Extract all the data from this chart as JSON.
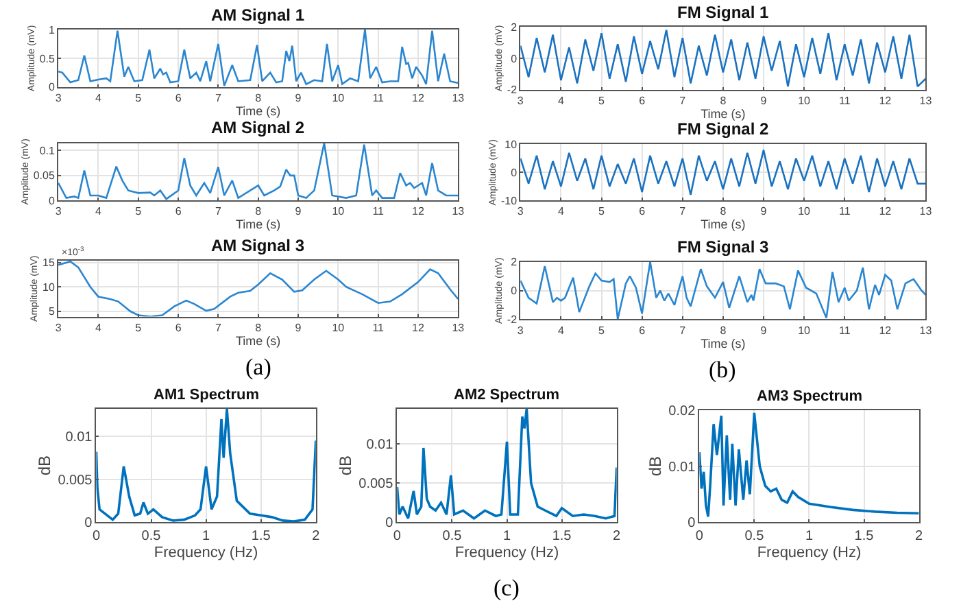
{
  "chart_data": [
    {
      "type": "line",
      "title": "AM Signal 1",
      "xlabel": "Time (s)",
      "ylabel": "Amplitude (mV)",
      "color": "#2a86d0",
      "xlim": [
        3,
        13
      ],
      "ylim": [
        0,
        1
      ],
      "xticks": [
        3,
        4,
        5,
        6,
        7,
        8,
        9,
        10,
        11,
        12,
        13
      ],
      "yticks": [
        0,
        0.5,
        1
      ],
      "grid": true,
      "x": [
        3,
        3.1,
        3.3,
        3.5,
        3.65,
        3.8,
        4.0,
        4.2,
        4.3,
        4.48,
        4.65,
        4.75,
        4.9,
        5.1,
        5.28,
        5.4,
        5.55,
        5.62,
        5.7,
        5.8,
        6.0,
        6.15,
        6.3,
        6.45,
        6.55,
        6.7,
        6.8,
        7.0,
        7.15,
        7.35,
        7.5,
        7.8,
        7.97,
        8.1,
        8.3,
        8.45,
        8.6,
        8.7,
        8.78,
        8.85,
        8.95,
        9.07,
        9.2,
        9.4,
        9.6,
        9.72,
        9.85,
        10.0,
        10.1,
        10.3,
        10.5,
        10.67,
        10.8,
        10.95,
        11.1,
        11.3,
        11.5,
        11.6,
        11.7,
        11.75,
        11.85,
        11.95,
        12.1,
        12.2,
        12.35,
        12.5,
        12.65,
        12.8,
        13
      ],
      "values": [
        0.27,
        0.25,
        0.08,
        0.12,
        0.55,
        0.1,
        0.13,
        0.15,
        0.1,
        0.98,
        0.18,
        0.35,
        0.1,
        0.12,
        0.65,
        0.15,
        0.32,
        0.22,
        0.25,
        0.08,
        0.1,
        0.65,
        0.15,
        0.25,
        0.1,
        0.45,
        0.1,
        0.75,
        0.02,
        0.38,
        0.1,
        0.12,
        0.73,
        0.1,
        0.25,
        0.08,
        0.1,
        0.63,
        0.45,
        0.72,
        0.1,
        0.25,
        0.05,
        0.12,
        0.1,
        0.75,
        0.1,
        0.38,
        0.05,
        0.15,
        0.1,
        1.0,
        0.15,
        0.35,
        0.08,
        0.1,
        0.1,
        0.7,
        0.4,
        0.42,
        0.15,
        0.35,
        0.2,
        0.05,
        0.98,
        0.1,
        0.58,
        0.1,
        0.07
      ]
    },
    {
      "type": "line",
      "title": "FM Signal 1",
      "xlabel": "Time (s)",
      "ylabel": "Amplitude (mV)",
      "color": "#1a72c0",
      "xlim": [
        3,
        13
      ],
      "ylim": [
        -2,
        2
      ],
      "xticks": [
        3,
        4,
        5,
        6,
        7,
        8,
        9,
        10,
        11,
        12,
        13
      ],
      "yticks": [
        -2,
        0,
        2
      ],
      "grid": true,
      "x": [
        3,
        3.2,
        3.4,
        3.6,
        3.8,
        4,
        4.2,
        4.4,
        4.6,
        4.8,
        5,
        5.2,
        5.4,
        5.6,
        5.8,
        6,
        6.2,
        6.4,
        6.6,
        6.8,
        7,
        7.2,
        7.4,
        7.6,
        7.8,
        8,
        8.2,
        8.4,
        8.6,
        8.8,
        9,
        9.2,
        9.4,
        9.6,
        9.8,
        10,
        10.2,
        10.4,
        10.6,
        10.8,
        11,
        11.2,
        11.4,
        11.6,
        11.8,
        12,
        12.2,
        12.4,
        12.6,
        12.8,
        13
      ],
      "values": [
        0.8,
        -1.2,
        1.3,
        -0.9,
        1.5,
        -1.4,
        0.7,
        -1.6,
        1.2,
        -0.8,
        1.6,
        -1.3,
        0.9,
        -1.5,
        1.4,
        -1.0,
        1.1,
        -0.7,
        1.8,
        -1.2,
        1.3,
        -1.6,
        0.8,
        -1.1,
        1.5,
        -0.9,
        1.2,
        -1.4,
        1.0,
        -1.3,
        1.4,
        -0.8,
        1.1,
        -1.8,
        0.9,
        -1.2,
        1.3,
        -1.0,
        1.6,
        -1.4,
        0.9,
        -1.1,
        1.2,
        -1.6,
        1.0,
        -0.9,
        1.4,
        -1.3,
        1.5,
        -1.8,
        -1.3
      ]
    },
    {
      "type": "line",
      "title": "AM Signal 2",
      "xlabel": "Time (s)",
      "ylabel": "Amplitude (mV)",
      "color": "#2a86d0",
      "xlim": [
        3,
        13
      ],
      "ylim": [
        0,
        0.115
      ],
      "xticks": [
        3,
        4,
        5,
        6,
        7,
        8,
        9,
        10,
        11,
        12,
        13
      ],
      "yticks": [
        0,
        0.05,
        0.1
      ],
      "grid": true,
      "x": [
        3,
        3.1,
        3.2,
        3.4,
        3.5,
        3.65,
        3.8,
        4.0,
        4.2,
        4.45,
        4.6,
        4.75,
        5.0,
        5.3,
        5.4,
        5.55,
        5.7,
        6.0,
        6.15,
        6.3,
        6.45,
        6.65,
        6.8,
        7.0,
        7.15,
        7.35,
        7.5,
        7.8,
        8.0,
        8.15,
        8.4,
        8.55,
        8.7,
        8.8,
        8.9,
        9.0,
        9.2,
        9.4,
        9.65,
        9.85,
        10.2,
        10.45,
        10.65,
        10.85,
        10.95,
        11.1,
        11.4,
        11.55,
        11.7,
        11.8,
        11.9,
        12.1,
        12.2,
        12.35,
        12.5,
        12.7,
        13
      ],
      "values": [
        0.035,
        0.02,
        0.005,
        0.008,
        0.005,
        0.06,
        0.01,
        0.01,
        0.005,
        0.068,
        0.04,
        0.02,
        0.015,
        0.016,
        0.01,
        0.02,
        0.003,
        0.02,
        0.085,
        0.03,
        0.01,
        0.035,
        0.015,
        0.067,
        0.01,
        0.04,
        0.005,
        0.02,
        0.03,
        0.01,
        0.02,
        0.028,
        0.062,
        0.05,
        0.05,
        0.01,
        0.005,
        0.02,
        0.115,
        0.01,
        0.005,
        0.01,
        0.112,
        0.01,
        0.02,
        0.005,
        0.005,
        0.055,
        0.03,
        0.035,
        0.025,
        0.035,
        0.01,
        0.075,
        0.02,
        0.01,
        0.01
      ]
    },
    {
      "type": "line",
      "title": "FM Signal 2",
      "xlabel": "Time (s)",
      "ylabel": "Amplitude (mV)",
      "color": "#1a72c0",
      "xlim": [
        3,
        13
      ],
      "ylim": [
        -10,
        10
      ],
      "xticks": [
        3,
        4,
        5,
        6,
        7,
        8,
        9,
        10,
        11,
        12,
        13
      ],
      "yticks": [
        -10,
        0,
        10
      ],
      "grid": true,
      "x": [
        3,
        3.2,
        3.4,
        3.6,
        3.8,
        4,
        4.2,
        4.4,
        4.6,
        4.8,
        5,
        5.2,
        5.4,
        5.6,
        5.8,
        6,
        6.2,
        6.4,
        6.6,
        6.8,
        7,
        7.2,
        7.4,
        7.6,
        7.8,
        8,
        8.2,
        8.4,
        8.6,
        8.8,
        9,
        9.2,
        9.4,
        9.6,
        9.8,
        10,
        10.2,
        10.4,
        10.6,
        10.8,
        11,
        11.2,
        11.4,
        11.6,
        11.8,
        12,
        12.2,
        12.4,
        12.6,
        12.8,
        13
      ],
      "values": [
        5,
        -4,
        6,
        -6,
        4,
        -5,
        7,
        -3,
        5,
        -6,
        6,
        -5,
        3,
        -4,
        5,
        -7,
        6,
        -4,
        4,
        -5,
        5,
        -8,
        6,
        -3,
        4,
        -6,
        5,
        -5,
        7,
        -4,
        8,
        -5,
        4,
        -6,
        5,
        -3,
        6,
        -5,
        4,
        -6,
        5,
        -4,
        6,
        -7,
        5,
        -5,
        4,
        -6,
        5,
        -4,
        -4
      ]
    },
    {
      "type": "line",
      "title": "AM Signal 3",
      "xlabel": "Time (s)",
      "ylabel": "Amplitude (mV)",
      "color": "#2a86d0",
      "xlim": [
        3,
        13
      ],
      "ylim": [
        3.9,
        15.4
      ],
      "xticks": [
        3,
        4,
        5,
        6,
        7,
        8,
        9,
        10,
        11,
        12,
        13
      ],
      "yticks": [
        5,
        10,
        15
      ],
      "grid": true,
      "annotations": [
        "×10$^{-3}$",
        "(a)"
      ],
      "x": [
        3,
        3.3,
        3.5,
        3.8,
        4.0,
        4.3,
        4.5,
        4.8,
        5.0,
        5.3,
        5.6,
        5.9,
        6.2,
        6.4,
        6.7,
        6.9,
        7.3,
        7.5,
        7.8,
        8.0,
        8.3,
        8.6,
        8.9,
        9.1,
        9.4,
        9.7,
        10.0,
        10.2,
        10.6,
        11.0,
        11.3,
        11.6,
        12.0,
        12.3,
        12.5,
        12.8,
        13
      ],
      "values": [
        14.5,
        15.2,
        14.0,
        10.0,
        8.0,
        7.5,
        7.0,
        5.0,
        4.2,
        3.9,
        4.2,
        6.0,
        7.2,
        6.5,
        5.1,
        5.5,
        8.0,
        8.8,
        9.2,
        10.5,
        12.8,
        11.5,
        9.0,
        9.3,
        11.5,
        13.3,
        11.5,
        10.0,
        8.5,
        6.7,
        7.0,
        8.5,
        11.0,
        13.6,
        12.8,
        9.5,
        7.5
      ]
    },
    {
      "type": "line",
      "title": "FM Signal 3",
      "xlabel": "Time (s)",
      "ylabel": "Amplitude (mV)",
      "color": "#2a86d0",
      "xlim": [
        3,
        13
      ],
      "ylim": [
        -2,
        2
      ],
      "xticks": [
        3,
        4,
        5,
        6,
        7,
        8,
        9,
        10,
        11,
        12,
        13
      ],
      "yticks": [
        -2,
        0,
        2
      ],
      "grid": true,
      "annotations": [
        "(b)"
      ],
      "x": [
        3,
        3.2,
        3.4,
        3.6,
        3.8,
        3.9,
        4.0,
        4.1,
        4.3,
        4.45,
        4.7,
        4.85,
        5.0,
        5.2,
        5.3,
        5.4,
        5.6,
        5.7,
        5.85,
        6.0,
        6.2,
        6.35,
        6.45,
        6.55,
        6.65,
        6.8,
        6.9,
        7.0,
        7.1,
        7.2,
        7.45,
        7.6,
        7.8,
        8.0,
        8.15,
        8.4,
        8.6,
        8.7,
        8.75,
        8.9,
        9.05,
        9.3,
        9.5,
        9.65,
        9.85,
        10.05,
        10.3,
        10.55,
        10.7,
        10.85,
        11.0,
        11.1,
        11.3,
        11.45,
        11.6,
        11.75,
        11.85,
        12.0,
        12.15,
        12.3,
        12.5,
        12.7,
        12.9,
        13
      ],
      "values": [
        0.7,
        -0.5,
        -0.9,
        1.7,
        -0.8,
        -0.5,
        -0.7,
        -0.5,
        0.9,
        -1.5,
        0.3,
        1.2,
        0.7,
        0.6,
        0.8,
        -2.0,
        0.5,
        1.0,
        0.2,
        -1.6,
        2.0,
        -0.5,
        0,
        -0.7,
        -0.2,
        -1.0,
        0,
        1.0,
        -0.5,
        -1.1,
        1.5,
        0.3,
        -0.5,
        0.6,
        -1.2,
        1.0,
        -0.8,
        -0.3,
        -0.7,
        1.5,
        0.5,
        0.5,
        0.3,
        -1.3,
        1.4,
        0.2,
        -0.2,
        -1.9,
        1.3,
        -0.8,
        0.2,
        -0.7,
        0,
        1.6,
        -1.3,
        0.4,
        -0.3,
        1.1,
        0.7,
        -1.3,
        0.5,
        0.8,
        0,
        -0.3
      ]
    },
    {
      "type": "line",
      "title": "AM1 Spectrum",
      "xlabel": "Frequency (Hz)",
      "ylabel": "dB",
      "color": "#0072bd",
      "xlim": [
        0,
        2
      ],
      "ylim": [
        0,
        0.0132
      ],
      "xticks": [
        0,
        0.5,
        1,
        1.5,
        2
      ],
      "yticks": [
        0,
        0.005,
        0.01
      ],
      "grid": true,
      "x": [
        0,
        0.01,
        0.03,
        0.08,
        0.15,
        0.2,
        0.25,
        0.3,
        0.35,
        0.4,
        0.43,
        0.47,
        0.52,
        0.6,
        0.7,
        0.8,
        0.9,
        0.95,
        1.0,
        1.05,
        1.1,
        1.14,
        1.16,
        1.19,
        1.22,
        1.28,
        1.4,
        1.5,
        1.6,
        1.7,
        1.8,
        1.9,
        1.97,
        2.0
      ],
      "values": [
        0.0082,
        0.004,
        0.0015,
        0.001,
        0.0003,
        0.001,
        0.0065,
        0.003,
        0.0008,
        0.001,
        0.0023,
        0.001,
        0.0015,
        0.0006,
        0.0002,
        0.0003,
        0.0008,
        0.0015,
        0.0065,
        0.0015,
        0.003,
        0.012,
        0.0075,
        0.0132,
        0.008,
        0.0025,
        0.001,
        0.0008,
        0.0006,
        0.0002,
        0.0001,
        0.0003,
        0.0015,
        0.0095
      ]
    },
    {
      "type": "line",
      "title": "AM2 Spectrum",
      "xlabel": "Frequency (Hz)",
      "ylabel": "dB",
      "color": "#0072bd",
      "xlim": [
        0,
        2
      ],
      "ylim": [
        0,
        0.0145
      ],
      "xticks": [
        0,
        0.5,
        1,
        1.5,
        2
      ],
      "yticks": [
        0,
        0.005,
        0.01
      ],
      "grid": true,
      "annotations": [
        "(c)"
      ],
      "x": [
        0,
        0.02,
        0.05,
        0.1,
        0.15,
        0.18,
        0.22,
        0.24,
        0.27,
        0.3,
        0.35,
        0.4,
        0.45,
        0.49,
        0.52,
        0.6,
        0.7,
        0.8,
        0.9,
        0.95,
        1.0,
        1.03,
        1.1,
        1.14,
        1.16,
        1.18,
        1.22,
        1.28,
        1.35,
        1.45,
        1.5,
        1.6,
        1.7,
        1.8,
        1.9,
        1.98,
        2.0
      ],
      "values": [
        0.0045,
        0.001,
        0.002,
        0.0005,
        0.004,
        0.001,
        0.002,
        0.0095,
        0.003,
        0.002,
        0.0015,
        0.0025,
        0.001,
        0.006,
        0.001,
        0.0015,
        0.0005,
        0.0015,
        0.0008,
        0.001,
        0.0103,
        0.001,
        0.001,
        0.0135,
        0.012,
        0.0145,
        0.005,
        0.002,
        0.0015,
        0.0008,
        0.0018,
        0.0008,
        0.001,
        0.0008,
        0.0005,
        0.0008,
        0.007
      ]
    },
    {
      "type": "line",
      "title": "AM3 Spectrum",
      "xlabel": "Frequency (Hz)",
      "ylabel": "dB",
      "color": "#0072bd",
      "xlim": [
        0,
        2
      ],
      "ylim": [
        0,
        0.02
      ],
      "xticks": [
        0,
        0.5,
        1,
        1.5,
        2
      ],
      "yticks": [
        0,
        0.01,
        0.02
      ],
      "grid": true,
      "x": [
        0,
        0.02,
        0.04,
        0.06,
        0.08,
        0.1,
        0.13,
        0.16,
        0.2,
        0.22,
        0.25,
        0.28,
        0.3,
        0.33,
        0.36,
        0.4,
        0.43,
        0.46,
        0.5,
        0.55,
        0.6,
        0.65,
        0.7,
        0.75,
        0.8,
        0.85,
        0.9,
        1.0,
        1.2,
        1.4,
        1.6,
        1.8,
        2.0
      ],
      "values": [
        0.0125,
        0.006,
        0.009,
        0.003,
        0.001,
        0.007,
        0.0175,
        0.012,
        0.019,
        0.003,
        0.0155,
        0.004,
        0.014,
        0.003,
        0.013,
        0.004,
        0.011,
        0.005,
        0.0195,
        0.01,
        0.0065,
        0.0055,
        0.006,
        0.004,
        0.0035,
        0.0055,
        0.0045,
        0.0033,
        0.0027,
        0.0022,
        0.0019,
        0.0017,
        0.0016
      ]
    }
  ]
}
